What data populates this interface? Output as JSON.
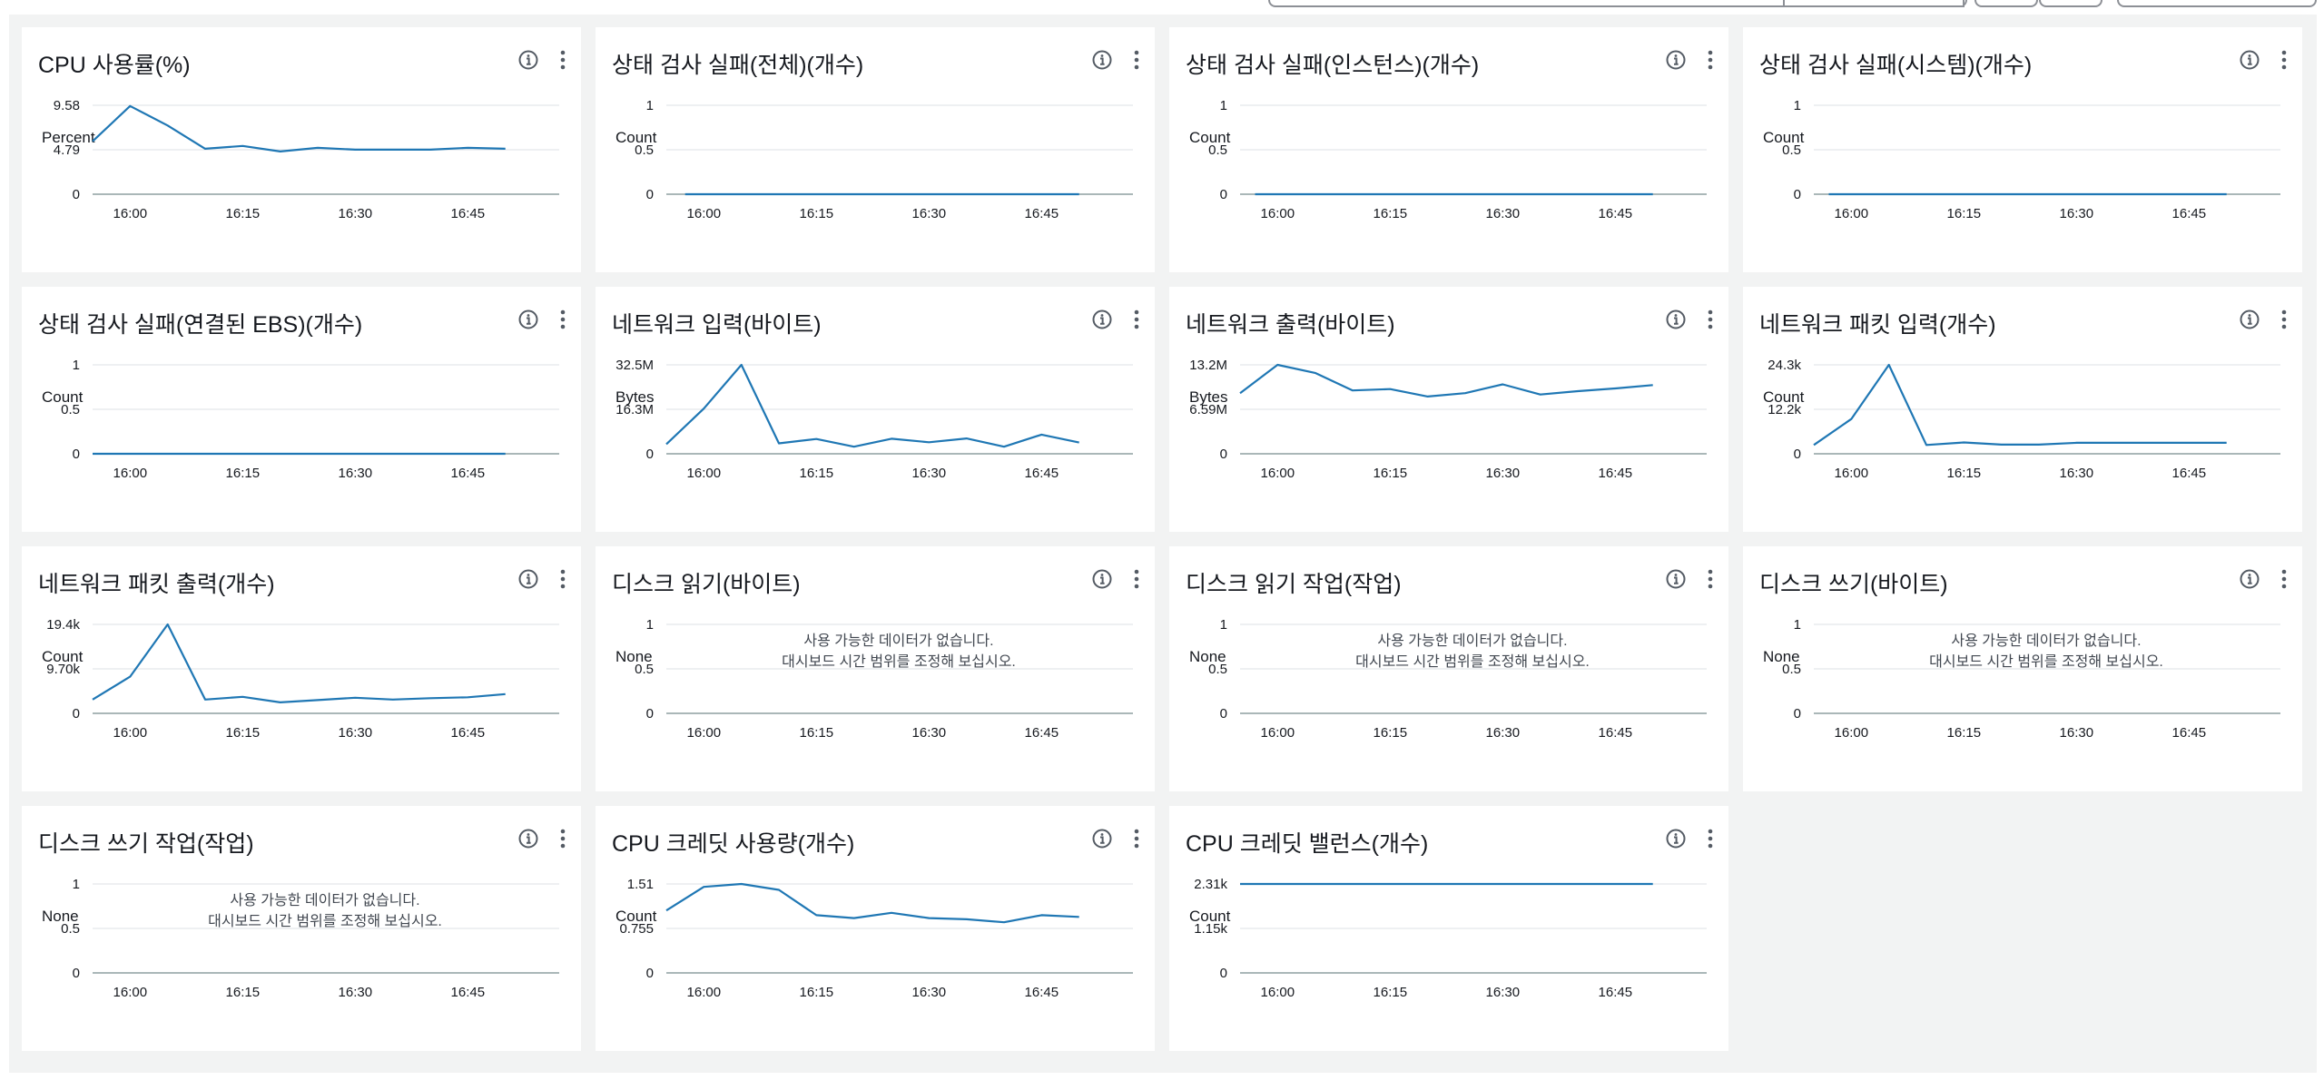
{
  "colors": {
    "line": "#1f77b4",
    "grid": "#e9ebed",
    "axis": "#aab7b8",
    "background": "#f2f3f3",
    "text": "#16191f"
  },
  "no_data_message": [
    "사용 가능한 데이터가 없습니다.",
    "대시보드 시간 범위를 조정해 보십시오."
  ],
  "panels": [
    {
      "title": "CPU 사용률(%)",
      "chart_data": {
        "type": "line",
        "ylabel": "Percent",
        "yticks": [
          "9.58",
          "4.79",
          "0"
        ],
        "ylim": [
          0,
          9.58
        ],
        "xticks": [
          "16:00",
          "16:15",
          "16:30",
          "16:45"
        ],
        "xrange": [
          -5,
          55
        ],
        "x": [
          -5,
          0,
          5,
          10,
          15,
          20,
          25,
          30,
          35,
          40,
          45,
          50
        ],
        "values": [
          5.7,
          9.5,
          7.4,
          4.9,
          5.2,
          4.6,
          5.0,
          4.8,
          4.8,
          4.8,
          5.0,
          4.9
        ]
      }
    },
    {
      "title": "상태 검사 실패(전체)(개수)",
      "chart_data": {
        "type": "line",
        "ylabel": "Count",
        "yticks": [
          "1",
          "0.5",
          "0"
        ],
        "ylim": [
          0,
          1
        ],
        "xticks": [
          "16:00",
          "16:15",
          "16:30",
          "16:45"
        ],
        "xrange": [
          -5,
          55
        ],
        "x": [
          -2.5,
          50
        ],
        "values": [
          0,
          0
        ]
      }
    },
    {
      "title": "상태 검사 실패(인스턴스)(개수)",
      "chart_data": {
        "type": "line",
        "ylabel": "Count",
        "yticks": [
          "1",
          "0.5",
          "0"
        ],
        "ylim": [
          0,
          1
        ],
        "xticks": [
          "16:00",
          "16:15",
          "16:30",
          "16:45"
        ],
        "xrange": [
          -5,
          55
        ],
        "x": [
          -3,
          50
        ],
        "values": [
          0,
          0
        ]
      }
    },
    {
      "title": "상태 검사 실패(시스템)(개수)",
      "chart_data": {
        "type": "line",
        "ylabel": "Count",
        "yticks": [
          "1",
          "0.5",
          "0"
        ],
        "ylim": [
          0,
          1
        ],
        "xticks": [
          "16:00",
          "16:15",
          "16:30",
          "16:45"
        ],
        "xrange": [
          -5,
          55
        ],
        "x": [
          -3,
          50
        ],
        "values": [
          0,
          0
        ]
      }
    },
    {
      "title": "상태 검사 실패(연결된 EBS)(개수)",
      "chart_data": {
        "type": "line",
        "ylabel": "Count",
        "yticks": [
          "1",
          "0.5",
          "0"
        ],
        "ylim": [
          0,
          1
        ],
        "xticks": [
          "16:00",
          "16:15",
          "16:30",
          "16:45"
        ],
        "xrange": [
          -5,
          55
        ],
        "x": [
          -5,
          50
        ],
        "values": [
          0,
          0
        ]
      }
    },
    {
      "title": "네트워크 입력(바이트)",
      "chart_data": {
        "type": "line",
        "ylabel": "Bytes",
        "yticks": [
          "32.5M",
          "16.3M",
          "0"
        ],
        "ylim": [
          0,
          32.5
        ],
        "xticks": [
          "16:00",
          "16:15",
          "16:30",
          "16:45"
        ],
        "xrange": [
          -5,
          55
        ],
        "x": [
          -5,
          0,
          5,
          10,
          15,
          20,
          25,
          30,
          35,
          40,
          45,
          50
        ],
        "values": [
          3.5,
          16.5,
          32.5,
          3.8,
          5.4,
          2.6,
          5.5,
          4.2,
          5.6,
          2.6,
          7.0,
          4.1
        ]
      }
    },
    {
      "title": "네트워크 출력(바이트)",
      "chart_data": {
        "type": "line",
        "ylabel": "Bytes",
        "yticks": [
          "13.2M",
          "6.59M",
          "0"
        ],
        "ylim": [
          0,
          13.2
        ],
        "xticks": [
          "16:00",
          "16:15",
          "16:30",
          "16:45"
        ],
        "xrange": [
          -5,
          55
        ],
        "x": [
          -5,
          0,
          5,
          10,
          15,
          20,
          25,
          30,
          35,
          40,
          45,
          50
        ],
        "values": [
          9.0,
          13.2,
          12.0,
          9.4,
          9.6,
          8.5,
          9.0,
          10.3,
          8.8,
          9.3,
          9.7,
          10.2
        ]
      }
    },
    {
      "title": "네트워크 패킷 입력(개수)",
      "chart_data": {
        "type": "line",
        "ylabel": "Count",
        "yticks": [
          "24.3k",
          "12.2k",
          "0"
        ],
        "ylim": [
          0,
          24.3
        ],
        "xticks": [
          "16:00",
          "16:15",
          "16:30",
          "16:45"
        ],
        "xrange": [
          -5,
          55
        ],
        "x": [
          -5,
          0,
          5,
          10,
          15,
          20,
          25,
          30,
          35,
          40,
          45,
          50
        ],
        "values": [
          2.4,
          9.5,
          24.3,
          2.4,
          3.1,
          2.5,
          2.5,
          3.0,
          3.0,
          3.0,
          3.0,
          3.0
        ]
      }
    },
    {
      "title": "네트워크 패킷 출력(개수)",
      "chart_data": {
        "type": "line",
        "ylabel": "Count",
        "yticks": [
          "19.4k",
          "9.70k",
          "0"
        ],
        "ylim": [
          0,
          19.4
        ],
        "xticks": [
          "16:00",
          "16:15",
          "16:30",
          "16:45"
        ],
        "xrange": [
          -5,
          55
        ],
        "x": [
          -5,
          0,
          5,
          10,
          15,
          20,
          25,
          30,
          35,
          40,
          45,
          50
        ],
        "values": [
          3.0,
          8.0,
          19.4,
          3.0,
          3.6,
          2.4,
          2.9,
          3.4,
          3.0,
          3.3,
          3.5,
          4.2
        ]
      }
    },
    {
      "title": "디스크 읽기(바이트)",
      "chart_data": {
        "type": "line",
        "ylabel": "None",
        "yticks": [
          "1",
          "0.5",
          "0"
        ],
        "ylim": [
          0,
          1
        ],
        "xticks": [
          "16:00",
          "16:15",
          "16:30",
          "16:45"
        ],
        "xrange": [
          -5,
          55
        ],
        "x": [],
        "values": [],
        "no_data": true
      }
    },
    {
      "title": "디스크 읽기 작업(작업)",
      "chart_data": {
        "type": "line",
        "ylabel": "None",
        "yticks": [
          "1",
          "0.5",
          "0"
        ],
        "ylim": [
          0,
          1
        ],
        "xticks": [
          "16:00",
          "16:15",
          "16:30",
          "16:45"
        ],
        "xrange": [
          -5,
          55
        ],
        "x": [],
        "values": [],
        "no_data": true
      }
    },
    {
      "title": "디스크 쓰기(바이트)",
      "chart_data": {
        "type": "line",
        "ylabel": "None",
        "yticks": [
          "1",
          "0.5",
          "0"
        ],
        "ylim": [
          0,
          1
        ],
        "xticks": [
          "16:00",
          "16:15",
          "16:30",
          "16:45"
        ],
        "xrange": [
          -5,
          55
        ],
        "x": [],
        "values": [],
        "no_data": true
      }
    },
    {
      "title": "디스크 쓰기 작업(작업)",
      "chart_data": {
        "type": "line",
        "ylabel": "None",
        "yticks": [
          "1",
          "0.5",
          "0"
        ],
        "ylim": [
          0,
          1
        ],
        "xticks": [
          "16:00",
          "16:15",
          "16:30",
          "16:45"
        ],
        "xrange": [
          -5,
          55
        ],
        "x": [],
        "values": [],
        "no_data": true
      }
    },
    {
      "title": "CPU 크레딧 사용량(개수)",
      "chart_data": {
        "type": "line",
        "ylabel": "Count",
        "yticks": [
          "1.51",
          "0.755",
          "0"
        ],
        "ylim": [
          0,
          1.51
        ],
        "xticks": [
          "16:00",
          "16:15",
          "16:30",
          "16:45"
        ],
        "xrange": [
          -5,
          55
        ],
        "x": [
          -5,
          0,
          5,
          10,
          15,
          20,
          25,
          30,
          35,
          40,
          45,
          50
        ],
        "values": [
          1.06,
          1.46,
          1.51,
          1.41,
          0.98,
          0.93,
          1.02,
          0.93,
          0.91,
          0.86,
          0.98,
          0.95
        ]
      }
    },
    {
      "title": "CPU 크레딧 밸런스(개수)",
      "chart_data": {
        "type": "line",
        "ylabel": "Count",
        "yticks": [
          "2.31k",
          "1.15k",
          "0"
        ],
        "ylim": [
          0,
          2.31
        ],
        "xticks": [
          "16:00",
          "16:15",
          "16:30",
          "16:45"
        ],
        "xrange": [
          -5,
          55
        ],
        "x": [
          -5,
          50
        ],
        "values": [
          2.31,
          2.31
        ]
      }
    }
  ]
}
